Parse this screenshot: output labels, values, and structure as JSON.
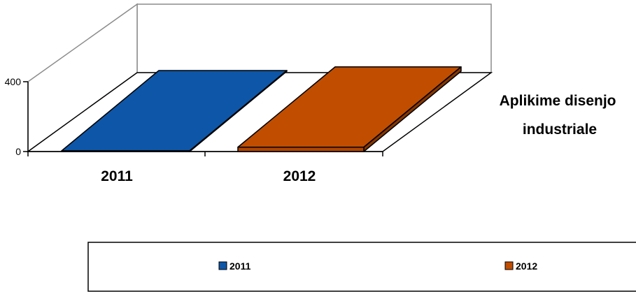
{
  "chart_data": {
    "type": "bar",
    "categories": [
      "2011",
      "2012"
    ],
    "series": [
      {
        "name": "Aplikime disenjo industriale",
        "values": [
          4,
          25
        ]
      }
    ],
    "colors": [
      "#0e56a8",
      "#c04d00"
    ],
    "ylim": [
      0,
      400
    ],
    "yticks": [
      "0",
      "400"
    ],
    "legend": {
      "position": "bottom",
      "entries": [
        "2011",
        "2012"
      ]
    },
    "grid": false,
    "three_d": true
  }
}
